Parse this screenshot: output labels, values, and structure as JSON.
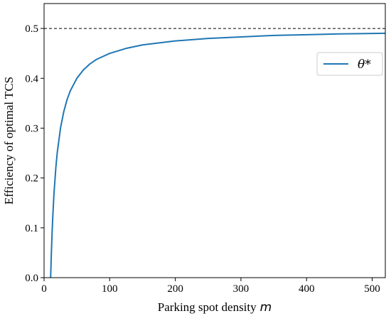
{
  "chart_data": {
    "type": "line",
    "xlabel": "Parking spot density",
    "xlabel_var": "m",
    "ylabel": "Efficiency of optimal TCS",
    "xlim": [
      0,
      520
    ],
    "ylim": [
      0.0,
      0.55
    ],
    "x_ticks": [
      0,
      100,
      200,
      300,
      400,
      500
    ],
    "y_ticks": [
      0.0,
      0.1,
      0.2,
      0.3,
      0.4,
      0.5
    ],
    "y_tick_labels": [
      "0.0",
      "0.1",
      "0.2",
      "0.3",
      "0.4",
      "0.5"
    ],
    "grid": false,
    "legend_position": "right",
    "reference_line": {
      "y": 0.5,
      "style": "dashed",
      "color": "#000000"
    },
    "series": [
      {
        "name": "θ*",
        "color": "#1f77b4",
        "x": [
          10,
          11,
          12,
          13,
          15,
          18,
          20,
          25,
          30,
          35,
          40,
          50,
          60,
          70,
          80,
          100,
          125,
          150,
          200,
          250,
          300,
          350,
          400,
          450,
          500,
          520
        ],
        "y": [
          0.0,
          0.045,
          0.083,
          0.115,
          0.167,
          0.222,
          0.25,
          0.3,
          0.333,
          0.357,
          0.375,
          0.4,
          0.417,
          0.429,
          0.438,
          0.45,
          0.46,
          0.467,
          0.475,
          0.48,
          0.483,
          0.486,
          0.4875,
          0.489,
          0.49,
          0.4904
        ]
      }
    ]
  }
}
